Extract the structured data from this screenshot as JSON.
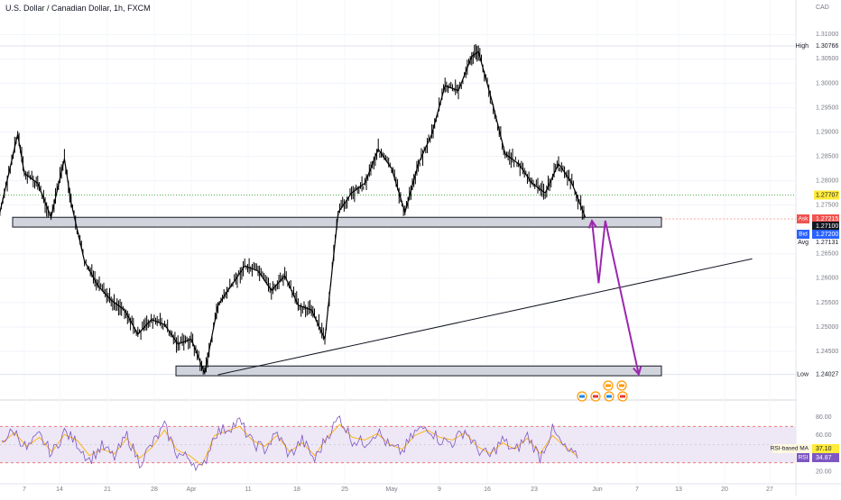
{
  "header": {
    "title": "U.S. Dollar / Canadian Dollar, 1h, FXCM"
  },
  "colors": {
    "candle": "#000000",
    "zone_fill": "#d1d4dc",
    "arrow": "#9c27b0",
    "green_line": "#4caf50",
    "rsi_line": "#7e57c2",
    "rsi_ma": "#ffb300",
    "rsi_band": "#ede7f6",
    "ask": "#ef5350",
    "bid": "#2962ff"
  },
  "icons": [
    "us-flag-icon",
    "canada-flag-icon",
    "earnings-event-icon"
  ],
  "chart_data": [
    {
      "type": "line",
      "title": "U.S. Dollar / Canadian Dollar, 1h, FXCM",
      "currency_label": "CAD",
      "x_tick_labels": [
        "7",
        "14",
        "21",
        "28",
        "Apr",
        "11",
        "18",
        "25",
        "May",
        "9",
        "16",
        "23",
        "Jun",
        "7",
        "13",
        "20",
        "27"
      ],
      "y_tick_labels": [
        "1.31000",
        "1.30500",
        "1.30000",
        "1.29500",
        "1.29000",
        "1.28500",
        "1.28000",
        "1.27500",
        "1.26500",
        "1.26000",
        "1.25500",
        "1.25000",
        "1.24500"
      ],
      "ylim": [
        1.2365,
        1.3145
      ],
      "grid": true,
      "series": [
        {
          "x": [
            "Mar 2",
            "Mar 4",
            "Mar 6",
            "Mar 7",
            "Mar 9",
            "Mar 11",
            "Mar 13",
            "Mar 14",
            "Mar 16",
            "Mar 18",
            "Mar 20",
            "Mar 22",
            "Mar 24",
            "Mar 26",
            "Mar 28",
            "Mar 30",
            "Apr 1",
            "Apr 3",
            "Apr 5",
            "Apr 7",
            "Apr 9",
            "Apr 11",
            "Apr 13",
            "Apr 15",
            "Apr 17",
            "Apr 19",
            "Apr 21",
            "Apr 23",
            "Apr 25",
            "Apr 27",
            "Apr 29",
            "May 1",
            "May 3",
            "May 5",
            "May 7",
            "May 9",
            "May 11",
            "May 13",
            "May 14",
            "May 16",
            "May 18",
            "May 20",
            "May 22",
            "May 24",
            "May 26",
            "May 28",
            "May 30"
          ],
          "values": [
            1.2655,
            1.2775,
            1.2895,
            1.2815,
            1.2795,
            1.2725,
            1.2845,
            1.2755,
            1.2635,
            1.2585,
            1.2555,
            1.2535,
            1.2485,
            1.2515,
            1.2505,
            1.2465,
            1.2475,
            1.2405,
            1.2545,
            1.2585,
            1.2625,
            1.2615,
            1.2575,
            1.2605,
            1.2545,
            1.2535,
            1.2475,
            1.2735,
            1.2775,
            1.2795,
            1.2865,
            1.2825,
            1.2735,
            1.2835,
            1.2895,
            1.2995,
            1.2985,
            1.3055,
            1.3065,
            1.2965,
            1.2855,
            1.2835,
            1.2795,
            1.2775,
            1.2835,
            1.2795,
            1.2725
          ]
        }
      ],
      "high": {
        "label": "High",
        "value": "1.30766"
      },
      "low": {
        "label": "Low",
        "value": "1.24027"
      },
      "green_level": {
        "value": "1.27707"
      },
      "ask": {
        "label": "Ask",
        "value": "1.27215"
      },
      "mid": {
        "value": "1.27100"
      },
      "bid": {
        "label": "Bid",
        "value": "1.27200"
      },
      "avg": {
        "label": "Avg",
        "value": "1.27131"
      },
      "support_zones": [
        [
          1.2705,
          1.2725
        ],
        [
          1.24,
          1.242
        ]
      ],
      "trendline": [
        [
          "Apr 5",
          1.2402
        ],
        [
          "Jun 24",
          1.264
        ]
      ],
      "projection_path": [
        [
          "May 31",
          1.2718
        ],
        [
          "Jun 1",
          1.259
        ],
        [
          "Jun 2",
          1.2718
        ],
        [
          "Jun 7",
          1.2403
        ]
      ]
    },
    {
      "type": "line",
      "name": "RSI",
      "y_tick_labels": [
        "80.00",
        "60.00",
        "40.00",
        "20.00"
      ],
      "ylim": [
        10,
        90
      ],
      "band": [
        30,
        70
      ],
      "series": [
        {
          "name": "RSI-based MA",
          "label": "RSI-based MA",
          "value_label": "37.10",
          "values": [
            52,
            63,
            48,
            58,
            42,
            61,
            55,
            38,
            45,
            40,
            57,
            35,
            47,
            66,
            44,
            38,
            27,
            60,
            65,
            70,
            55,
            48,
            60,
            42,
            52,
            38,
            58,
            72,
            58,
            55,
            62,
            50,
            45,
            60,
            66,
            58,
            55,
            63,
            48,
            40,
            52,
            45,
            57,
            40,
            60,
            48,
            37
          ]
        },
        {
          "name": "RSI",
          "label": "RSI",
          "value_label": "34.87",
          "values": [
            55,
            65,
            45,
            60,
            40,
            64,
            52,
            33,
            48,
            36,
            60,
            30,
            50,
            70,
            40,
            35,
            22,
            62,
            68,
            75,
            52,
            45,
            62,
            38,
            55,
            33,
            60,
            80,
            55,
            52,
            65,
            47,
            42,
            63,
            70,
            55,
            52,
            66,
            45,
            37,
            55,
            42,
            60,
            36,
            66,
            45,
            35
          ]
        }
      ]
    }
  ]
}
